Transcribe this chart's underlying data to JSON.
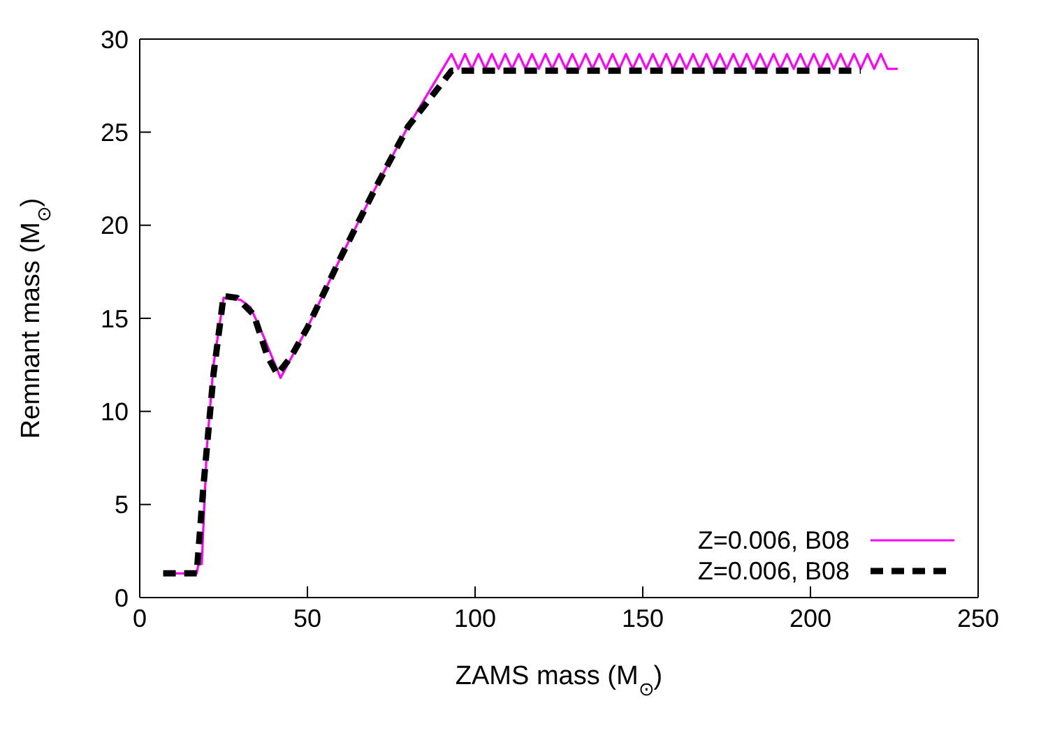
{
  "chart_data": {
    "type": "line",
    "xlabel": "ZAMS mass (M$_{⊙}$)",
    "ylabel": "Remnant mass (M$_{⊙}$)",
    "xlim": [
      0,
      250
    ],
    "xticks": [
      0,
      50,
      100,
      150,
      200,
      250
    ],
    "ylim": [
      0,
      30
    ],
    "yticks": [
      0,
      5,
      10,
      15,
      20,
      25,
      30
    ],
    "grid": false,
    "legend": "bottom right",
    "marker": "none",
    "series": [
      {
        "name": "Z=0.006, B08",
        "color": "#ff00ff",
        "line_style": "solid",
        "x": [
          7,
          17,
          17.5,
          18.5,
          20,
          22,
          25,
          30,
          33,
          37,
          42,
          50,
          60,
          70,
          80,
          93,
          95,
          97,
          99,
          101,
          103,
          105,
          107,
          109,
          111,
          113,
          115,
          117,
          119,
          121,
          123,
          125,
          127,
          129,
          131,
          133,
          135,
          137,
          139,
          141,
          143,
          145,
          147,
          149,
          151,
          153,
          155,
          157,
          159,
          161,
          163,
          165,
          167,
          169,
          171,
          173,
          175,
          177,
          179,
          181,
          183,
          185,
          187,
          189,
          191,
          193,
          195,
          197,
          199,
          201,
          203,
          205,
          207,
          209,
          211,
          213,
          215,
          217,
          219,
          221,
          223,
          226
        ],
        "values": [
          1.3,
          1.3,
          1.8,
          1.8,
          8,
          12.5,
          16.1,
          16,
          15.6,
          14,
          11.8,
          14.5,
          18.3,
          21.9,
          25.3,
          29.2,
          28.4,
          29.2,
          28.4,
          29.2,
          28.4,
          29.2,
          28.4,
          29.2,
          28.4,
          29.2,
          28.4,
          29.2,
          28.4,
          29.2,
          28.4,
          29.2,
          28.4,
          29.2,
          28.4,
          29.2,
          28.4,
          29.2,
          28.4,
          29.2,
          28.4,
          29.2,
          28.4,
          29.2,
          28.4,
          29.2,
          28.4,
          29.2,
          28.4,
          29.2,
          28.4,
          29.2,
          28.4,
          29.2,
          28.4,
          29.2,
          28.4,
          29.2,
          28.4,
          29.2,
          28.4,
          29.2,
          28.4,
          29.2,
          28.4,
          29.2,
          28.4,
          29.2,
          28.4,
          29.2,
          28.4,
          29.2,
          28.4,
          29.2,
          28.4,
          29.2,
          28.4,
          29.2,
          28.4,
          29.2,
          28.4,
          28.4
        ]
      },
      {
        "name": "Z=0.006, B08",
        "color": "#000000",
        "line_style": "dashed",
        "x": [
          7,
          17,
          19,
          22,
          25,
          29,
          34,
          38,
          41,
          45,
          50,
          60,
          70,
          80,
          93,
          120,
          150,
          180,
          215
        ],
        "values": [
          1.3,
          1.3,
          6,
          12,
          16.2,
          16.1,
          15.2,
          13,
          12,
          12.9,
          14.5,
          18.3,
          21.9,
          25.3,
          28.3,
          28.3,
          28.3,
          28.3,
          28.3
        ]
      }
    ]
  }
}
